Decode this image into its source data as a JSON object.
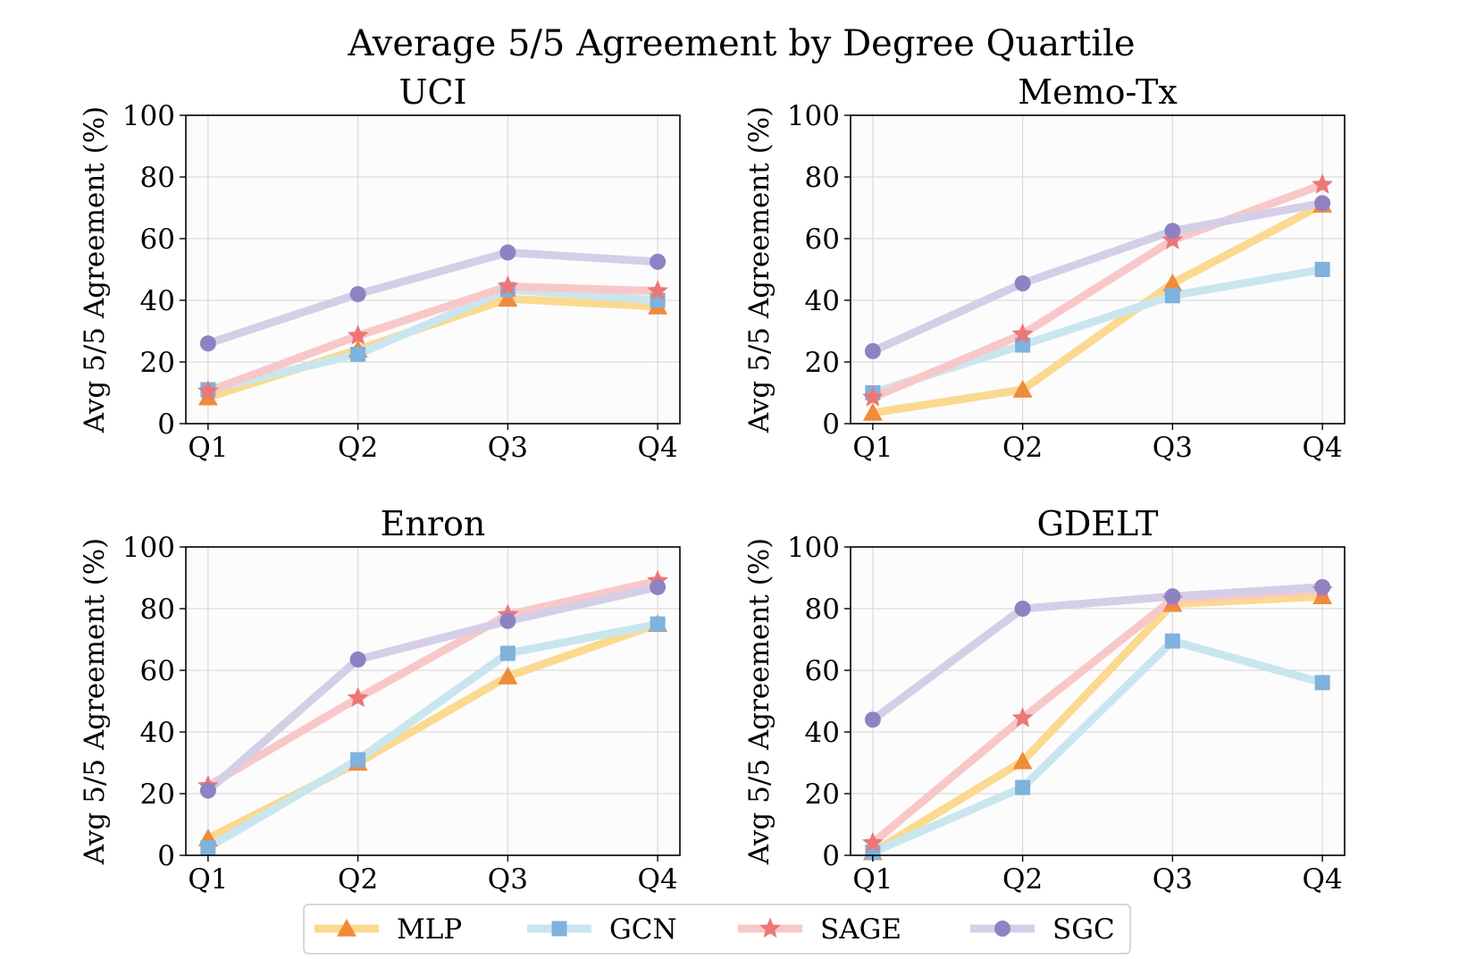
{
  "chart_data": {
    "type": "line",
    "title": "Average 5/5 Agreement by Degree Quartile",
    "ylabel": "Avg 5/5 Agreement (%)",
    "categories": [
      "Q1",
      "Q2",
      "Q3",
      "Q4"
    ],
    "ylim": [
      0,
      100
    ],
    "yticks": [
      0,
      20,
      40,
      60,
      80,
      100
    ],
    "grid": true,
    "legend_position": "bottom-center",
    "series_styles": [
      {
        "name": "MLP",
        "line_color": "#fbd98f",
        "marker_color": "#ee8c3a",
        "marker": "triangle"
      },
      {
        "name": "GCN",
        "line_color": "#c9e6ef",
        "marker_color": "#7fb2dc",
        "marker": "square"
      },
      {
        "name": "SAGE",
        "line_color": "#f8c8c8",
        "marker_color": "#ec7777",
        "marker": "star"
      },
      {
        "name": "SGC",
        "line_color": "#d4cfe7",
        "marker_color": "#8f82c3",
        "marker": "circle"
      }
    ],
    "panels": [
      {
        "title": "UCI",
        "series": [
          {
            "name": "MLP",
            "values": [
              8.5,
              24,
              40.5,
              38
            ]
          },
          {
            "name": "GCN",
            "values": [
              11,
              22.5,
              43.5,
              40
            ]
          },
          {
            "name": "SAGE",
            "values": [
              10.5,
              28.5,
              44.5,
              43
            ]
          },
          {
            "name": "SGC",
            "values": [
              26,
              42,
              55.5,
              52.5
            ]
          }
        ]
      },
      {
        "title": "Memo-Tx",
        "series": [
          {
            "name": "MLP",
            "values": [
              3.5,
              11,
              45.5,
              71
            ]
          },
          {
            "name": "GCN",
            "values": [
              10,
              25.5,
              41.5,
              50
            ]
          },
          {
            "name": "SAGE",
            "values": [
              8.5,
              29,
              59.5,
              77.5
            ]
          },
          {
            "name": "SGC",
            "values": [
              23.5,
              45.5,
              62.5,
              71.5
            ]
          }
        ]
      },
      {
        "title": "Enron",
        "series": [
          {
            "name": "MLP",
            "values": [
              5.5,
              30,
              58,
              75
            ]
          },
          {
            "name": "GCN",
            "values": [
              2.5,
              31,
              65.5,
              75
            ]
          },
          {
            "name": "SAGE",
            "values": [
              22.5,
              51,
              78,
              89
            ]
          },
          {
            "name": "SGC",
            "values": [
              21,
              63.5,
              76,
              87
            ]
          }
        ]
      },
      {
        "title": "GDELT",
        "series": [
          {
            "name": "MLP",
            "values": [
              1,
              30.5,
              81.5,
              84
            ]
          },
          {
            "name": "GCN",
            "values": [
              1,
              22,
              69.5,
              56
            ]
          },
          {
            "name": "SAGE",
            "values": [
              4,
              44.5,
              83,
              86
            ]
          },
          {
            "name": "SGC",
            "values": [
              44,
              80,
              84,
              87
            ]
          }
        ]
      }
    ]
  }
}
